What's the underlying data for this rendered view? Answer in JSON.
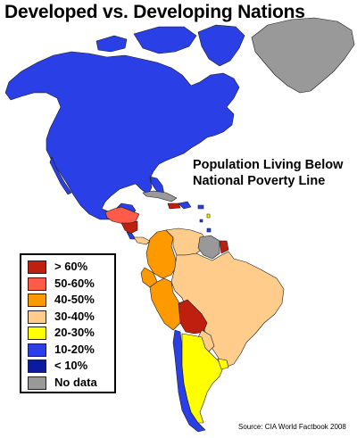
{
  "map": {
    "title": "Developed vs. Developing Nations",
    "subtitle": "Population Living Below National Poverty Line",
    "source": "Source: CIA World Factbook 2008"
  },
  "legend": {
    "items": [
      {
        "label": "> 60%",
        "color": "#bf1f0f"
      },
      {
        "label": "50-60%",
        "color": "#ff5a4a"
      },
      {
        "label": "40-50%",
        "color": "#ff9900"
      },
      {
        "label": "30-40%",
        "color": "#ffcc8c"
      },
      {
        "label": "20-30%",
        "color": "#ffff00"
      },
      {
        "label": "10-20%",
        "color": "#2a3fe6"
      },
      {
        "label": "< 10%",
        "color": "#0b1ba0"
      },
      {
        "label": "No data",
        "color": "#999999"
      }
    ]
  },
  "regions": {
    "greenland": "No data",
    "north-america": "10-20%",
    "cuba": "No data",
    "haiti": "> 60%",
    "guatemala-honduras": "50-60%",
    "nicaragua": "> 60%",
    "panama": "30-40%",
    "colombia": "40-50%",
    "venezuela": "30-40%",
    "guyana-suriname": "No data",
    "french-guiana": "> 60%",
    "ecuador": "40-50%",
    "peru": "40-50%",
    "brazil": "30-40%",
    "bolivia": "> 60%",
    "paraguay": "30-40%",
    "argentina": "20-30%",
    "chile": "10-20%",
    "uruguay": "20-30%"
  }
}
